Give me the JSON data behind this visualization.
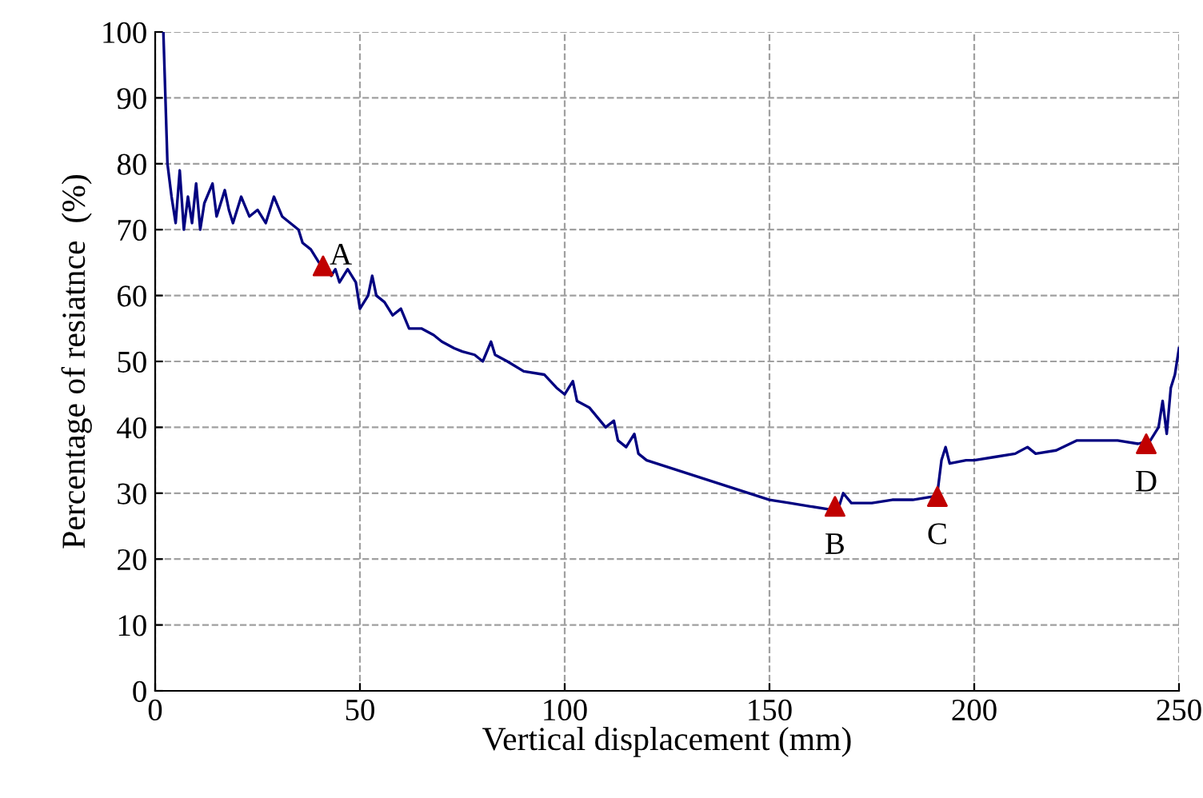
{
  "chart_data": {
    "type": "line",
    "xlabel": "Vertical displacement (mm)",
    "ylabel": "Percentage of resiatnce  (%)",
    "xlim": [
      0,
      250
    ],
    "ylim": [
      0,
      100
    ],
    "xticks": [
      0,
      50,
      100,
      150,
      200,
      250
    ],
    "yticks": [
      0,
      10,
      20,
      30,
      40,
      50,
      60,
      70,
      80,
      90,
      100
    ],
    "grid": true,
    "series": [
      {
        "color": "#000080",
        "marker": "none",
        "line_style": "solid",
        "x": [
          2,
          2.5,
          3,
          4,
          5,
          6,
          7,
          8,
          9,
          10,
          11,
          12,
          14,
          15,
          17,
          18,
          19,
          21,
          23,
          25,
          27,
          29,
          31,
          33,
          35,
          36,
          38,
          40,
          41,
          43,
          44,
          45,
          47,
          49,
          50,
          52,
          53,
          54,
          56,
          58,
          60,
          62,
          65,
          68,
          70,
          73,
          75,
          78,
          80,
          82,
          83,
          86,
          90,
          95,
          98,
          100,
          102,
          103,
          106,
          110,
          112,
          113,
          115,
          117,
          118,
          120,
          125,
          130,
          135,
          140,
          145,
          150,
          155,
          160,
          165,
          167,
          168,
          170,
          175,
          180,
          185,
          190,
          191,
          192,
          193,
          194,
          198,
          200,
          205,
          210,
          213,
          215,
          220,
          225,
          230,
          235,
          240,
          243,
          245,
          246,
          247,
          248,
          249,
          250
        ],
        "values": [
          100,
          90,
          80,
          75,
          71,
          79,
          70,
          75,
          71,
          77,
          70,
          74,
          77,
          72,
          76,
          73,
          71,
          75,
          72,
          73,
          71,
          75,
          72,
          71,
          70,
          68,
          67,
          65,
          64.5,
          63,
          64,
          62,
          64,
          62,
          58,
          60,
          63,
          60,
          59,
          57,
          58,
          55,
          55,
          54,
          53,
          52,
          51.5,
          51,
          50,
          53,
          51,
          50,
          48.5,
          48,
          46,
          45,
          47,
          44,
          43,
          40,
          41,
          38,
          37,
          39,
          36,
          35,
          34,
          33,
          32,
          31,
          30,
          29,
          28.5,
          28,
          27.5,
          28,
          30,
          28.5,
          28.5,
          29,
          29,
          29.5,
          30,
          35,
          37,
          34.5,
          35,
          35,
          35.5,
          36,
          37,
          36,
          36.5,
          38,
          38,
          38,
          37.5,
          38,
          40,
          44,
          39,
          46,
          48,
          52
        ]
      },
      {
        "type": "scatter",
        "color": "#c00000",
        "marker": "triangle",
        "x": [
          41,
          166,
          191,
          242
        ],
        "values": [
          64.5,
          28,
          29.5,
          37.5
        ]
      }
    ],
    "annotations": [
      {
        "text": "A",
        "x": 41,
        "y": 64.5
      },
      {
        "text": "B",
        "x": 166,
        "y": 28
      },
      {
        "text": "C",
        "x": 191,
        "y": 29.5
      },
      {
        "text": "D",
        "x": 242,
        "y": 37.5
      }
    ]
  }
}
